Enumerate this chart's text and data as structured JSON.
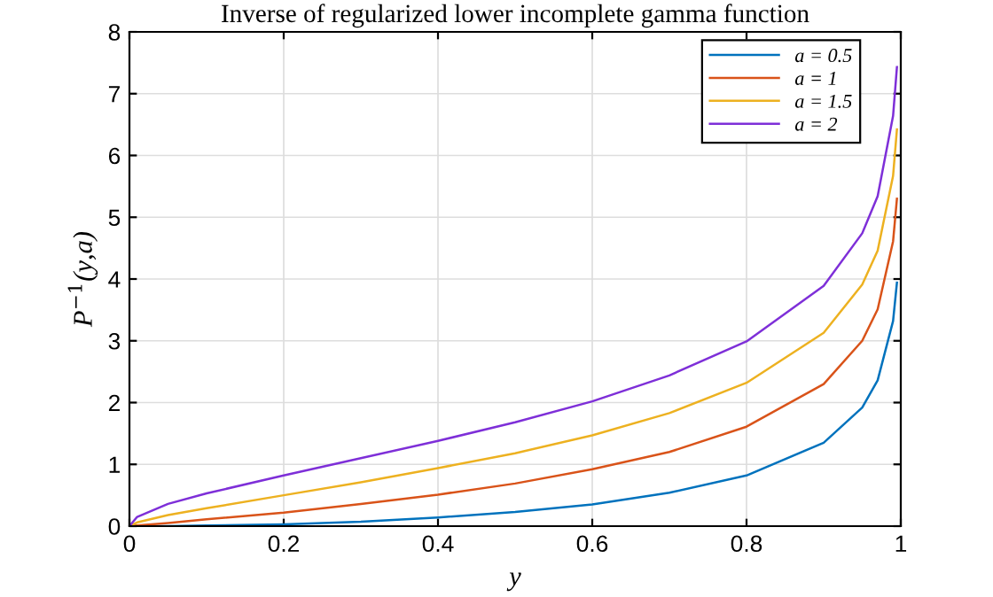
{
  "chart_data": {
    "type": "line",
    "title": "Inverse of regularized lower incomplete gamma function",
    "xlabel": "y",
    "ylabel": "P$^{−1}$(y,a)",
    "x": [
      0,
      0.01,
      0.05,
      0.1,
      0.2,
      0.3,
      0.4,
      0.5,
      0.6,
      0.7,
      0.8,
      0.9,
      0.95,
      0.97,
      0.99,
      0.995
    ],
    "series": [
      {
        "name": "a = 0.5",
        "color": "#0072bd",
        "values": [
          0,
          0,
          0,
          0.01,
          0.03,
          0.07,
          0.14,
          0.23,
          0.35,
          0.54,
          0.82,
          1.35,
          1.92,
          2.36,
          3.32,
          3.94
        ]
      },
      {
        "name": "a = 1",
        "color": "#d95319",
        "values": [
          0,
          0.01,
          0.05,
          0.11,
          0.22,
          0.36,
          0.51,
          0.69,
          0.92,
          1.2,
          1.61,
          2.3,
          3.0,
          3.51,
          4.61,
          5.3
        ]
      },
      {
        "name": "a = 1.5",
        "color": "#edb120",
        "values": [
          0,
          0.06,
          0.18,
          0.29,
          0.5,
          0.71,
          0.94,
          1.18,
          1.47,
          1.83,
          2.32,
          3.13,
          3.91,
          4.46,
          5.67,
          6.42
        ]
      },
      {
        "name": "a = 2",
        "color": "#7e2fd8",
        "values": [
          0,
          0.15,
          0.36,
          0.53,
          0.82,
          1.1,
          1.38,
          1.68,
          2.02,
          2.44,
          2.99,
          3.89,
          4.74,
          5.34,
          6.64,
          7.43
        ]
      }
    ],
    "xlim": [
      0,
      1
    ],
    "xticks": [
      0,
      0.2,
      0.4,
      0.6,
      0.8,
      1
    ],
    "ylim": [
      0,
      8
    ],
    "yticks": [
      0,
      1,
      2,
      3,
      4,
      5,
      6,
      7,
      8
    ],
    "grid": true,
    "legend": "top right",
    "marker": "none",
    "line_style": "solid"
  }
}
